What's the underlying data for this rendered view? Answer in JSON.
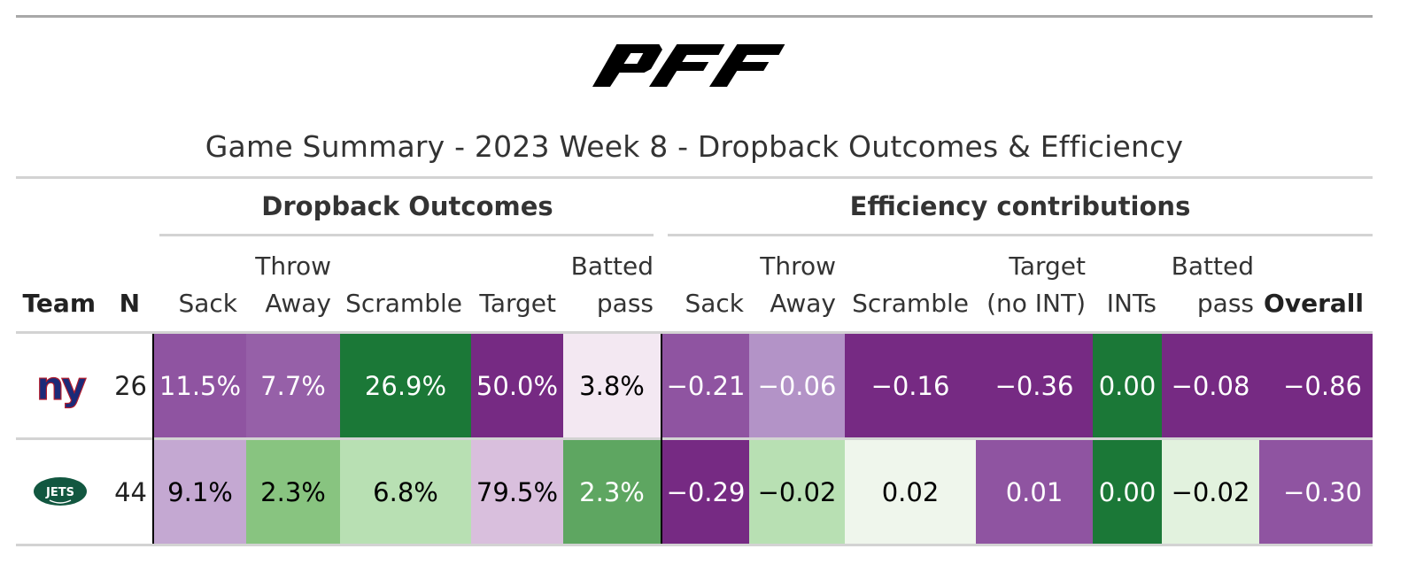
{
  "logo_text": "PFF",
  "title": "Game Summary - 2023 Week 8 - Dropback Outcomes & Efficiency",
  "spanners": {
    "outcomes": "Dropback Outcomes",
    "efficiency": "Efficiency contributions"
  },
  "headers": {
    "team": "Team",
    "n": "N",
    "o_sack": "Sack",
    "o_throw_1": "Throw",
    "o_throw_2": "Away",
    "o_scramble": "Scramble",
    "o_target": "Target",
    "o_batted_1": "Batted",
    "o_batted_2": "pass",
    "e_sack": "Sack",
    "e_throw_1": "Throw",
    "e_throw_2": "Away",
    "e_scramble": "Scramble",
    "e_target_1": "Target",
    "e_target_2": "(no INT)",
    "e_ints": "INTs",
    "e_batted_1": "Batted",
    "e_batted_2": "pass",
    "e_overall": "Overall"
  },
  "rows": [
    {
      "team": "giants-logo",
      "n": "26",
      "outcomes": [
        "11.5%",
        "7.7%",
        "26.9%",
        "50.0%",
        "3.8%"
      ],
      "efficiency": [
        "−0.21",
        "−0.06",
        "−0.16",
        "−0.36",
        "0.00",
        "−0.08",
        "−0.86"
      ],
      "outcome_colors": [
        "#8f54a1",
        "#9660a8",
        "#1b7837",
        "#762a83",
        "#f3e8f2"
      ],
      "outcome_text": [
        "#ffffff",
        "#ffffff",
        "#ffffff",
        "#ffffff",
        "#000000"
      ],
      "efficiency_colors": [
        "#8f54a1",
        "#b393c7",
        "#762a83",
        "#762a83",
        "#1b7837",
        "#762a83",
        "#762a83"
      ],
      "efficiency_text": [
        "#ffffff",
        "#ffffff",
        "#ffffff",
        "#ffffff",
        "#ffffff",
        "#ffffff",
        "#ffffff"
      ]
    },
    {
      "team": "jets-logo",
      "n": "44",
      "outcomes": [
        "9.1%",
        "2.3%",
        "6.8%",
        "79.5%",
        "2.3%"
      ],
      "efficiency": [
        "−0.29",
        "−0.02",
        "0.02",
        "0.01",
        "0.00",
        "−0.02",
        "−0.30"
      ],
      "outcome_colors": [
        "#c4a8d2",
        "#88c480",
        "#b8e0b3",
        "#d9bfdd",
        "#5ea661"
      ],
      "outcome_text": [
        "#000000",
        "#000000",
        "#000000",
        "#000000",
        "#ffffff"
      ],
      "efficiency_colors": [
        "#762a83",
        "#b8e0b3",
        "#eff6ec",
        "#8f54a1",
        "#1b7837",
        "#e2f2de",
        "#8f54a1"
      ],
      "efficiency_text": [
        "#ffffff",
        "#000000",
        "#000000",
        "#ffffff",
        "#ffffff",
        "#000000",
        "#ffffff"
      ]
    }
  ],
  "jets_logo_text": "JETS",
  "giants_logo_text": "ny"
}
